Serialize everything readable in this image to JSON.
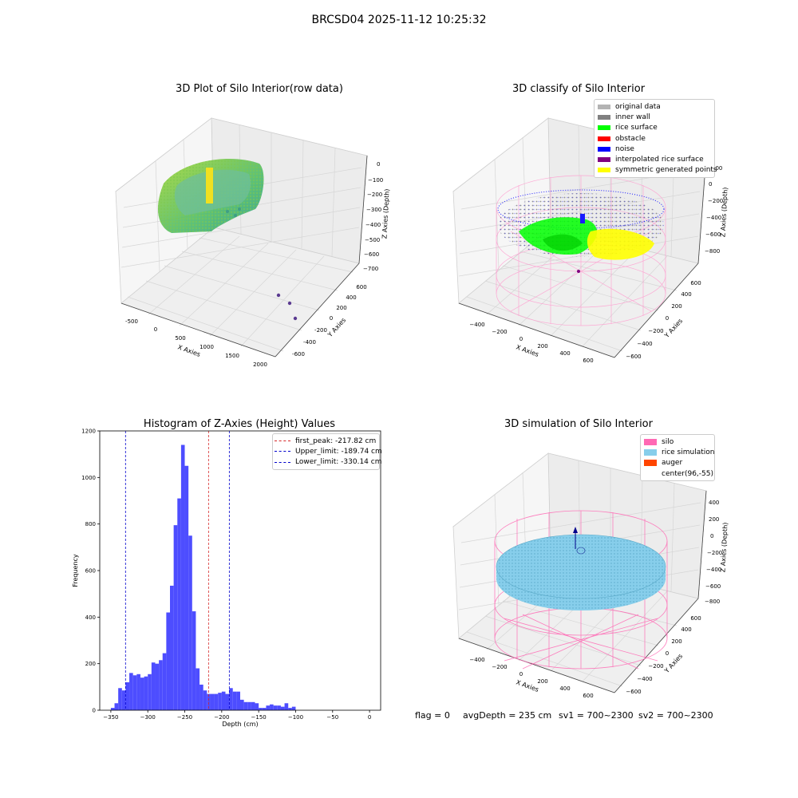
{
  "figure": {
    "suptitle": "BRCSD04 2025-11-12 10:25:32"
  },
  "colors": {
    "original": "#b3b3b3",
    "inner_wall": "#808080",
    "rice_surface": "#00ff00",
    "obstacle": "#ff0000",
    "noise": "#0000ff",
    "interpolated": "#800080",
    "symmetric": "#ffff00",
    "silo": "#ff69b4",
    "rice_sim": "#87ceeb",
    "auger": "#ff4500",
    "hist_bar": "#4d4dff",
    "peak_line": "#d62728",
    "limit_line": "#0000cc"
  },
  "plots": {
    "raw": {
      "title": "3D Plot of Silo Interior(row data)",
      "xlabel": "X Axies",
      "ylabel": "Y Axies",
      "zlabel": "Z Axies (Depth)",
      "xticks": [
        "-500",
        "0",
        "500",
        "1000",
        "1500",
        "2000"
      ],
      "yticks": [
        "-600",
        "-400",
        "-200",
        "0",
        "200",
        "400",
        "600"
      ],
      "zticks": [
        "0",
        "−100",
        "−200",
        "−300",
        "−400",
        "−500",
        "−600",
        "−700"
      ]
    },
    "classify": {
      "title": "3D classify of Silo Interior",
      "xlabel": "X Axies",
      "ylabel": "Y Axies",
      "zlabel": "Z Axies (Depth)",
      "xticks": [
        "−400",
        "−200",
        "0",
        "200",
        "400",
        "600"
      ],
      "yticks": [
        "−600",
        "−400",
        "−200",
        "0",
        "200",
        "400",
        "600"
      ],
      "zticks": [
        "200",
        "0",
        "−200",
        "−400",
        "−600",
        "−800"
      ],
      "legend": [
        "original data",
        "inner wall",
        "rice surface",
        "obstacle",
        "noise",
        "interpolated rice surface",
        "symmetric generated points"
      ]
    },
    "simulation": {
      "title": "3D simulation of Silo Interior",
      "xlabel": "X Axies",
      "ylabel": "Y Axies",
      "zlabel": "Z Axies (Depth)",
      "xticks": [
        "−400",
        "−200",
        "0",
        "200",
        "400",
        "600"
      ],
      "yticks": [
        "−600",
        "−400",
        "−200",
        "0",
        "200",
        "400",
        "600"
      ],
      "zticks": [
        "400",
        "200",
        "0",
        "−200",
        "−400",
        "−600",
        "−800"
      ],
      "legend": [
        "silo",
        "rice simulation",
        "auger",
        "center(96,-55)"
      ]
    }
  },
  "chart_data": {
    "type": "bar",
    "title": "Histogram of Z-Axies (Height) Values",
    "xlabel": "Depth (cm)",
    "ylabel": "Frequency",
    "xlim": [
      -365,
      15
    ],
    "ylim": [
      0,
      1200
    ],
    "xticks": [
      "−350",
      "−300",
      "−250",
      "−200",
      "−150",
      "−100",
      "−50",
      "0"
    ],
    "yticks": [
      "0",
      "200",
      "400",
      "600",
      "800",
      "1000",
      "1200"
    ],
    "bin_width": 5,
    "bins": [
      [
        -350,
        10
      ],
      [
        -345,
        30
      ],
      [
        -340,
        95
      ],
      [
        -335,
        85
      ],
      [
        -330,
        120
      ],
      [
        -325,
        160
      ],
      [
        -320,
        150
      ],
      [
        -315,
        155
      ],
      [
        -310,
        140
      ],
      [
        -305,
        145
      ],
      [
        -300,
        155
      ],
      [
        -295,
        205
      ],
      [
        -290,
        200
      ],
      [
        -285,
        215
      ],
      [
        -280,
        245
      ],
      [
        -275,
        420
      ],
      [
        -270,
        535
      ],
      [
        -265,
        795
      ],
      [
        -260,
        910
      ],
      [
        -255,
        1140
      ],
      [
        -250,
        1050
      ],
      [
        -245,
        750
      ],
      [
        -240,
        425
      ],
      [
        -235,
        180
      ],
      [
        -230,
        110
      ],
      [
        -225,
        85
      ],
      [
        -220,
        70
      ],
      [
        -215,
        70
      ],
      [
        -210,
        70
      ],
      [
        -205,
        75
      ],
      [
        -200,
        80
      ],
      [
        -195,
        70
      ],
      [
        -190,
        95
      ],
      [
        -185,
        80
      ],
      [
        -180,
        80
      ],
      [
        -175,
        45
      ],
      [
        -170,
        35
      ],
      [
        -165,
        35
      ],
      [
        -160,
        35
      ],
      [
        -155,
        30
      ],
      [
        -150,
        10
      ],
      [
        -145,
        10
      ],
      [
        -140,
        20
      ],
      [
        -135,
        25
      ],
      [
        -130,
        20
      ],
      [
        -125,
        20
      ],
      [
        -120,
        15
      ],
      [
        -115,
        30
      ],
      [
        -110,
        10
      ],
      [
        -105,
        15
      ]
    ],
    "vlines": [
      {
        "label": "first_peak: -217.82 cm",
        "x": -217.82,
        "color": "#d62728"
      },
      {
        "label": "Upper_limit: -189.74 cm",
        "x": -189.74,
        "color": "#0000cc"
      },
      {
        "label": "Lower_limit: -330.14 cm",
        "x": -330.14,
        "color": "#0000cc"
      }
    ]
  },
  "footer": {
    "flag": "flag = 0",
    "avg_depth": "avgDepth = 235 cm",
    "sv1": "sv1 = 700~2300",
    "sv2": "sv2 = 700~2300"
  }
}
